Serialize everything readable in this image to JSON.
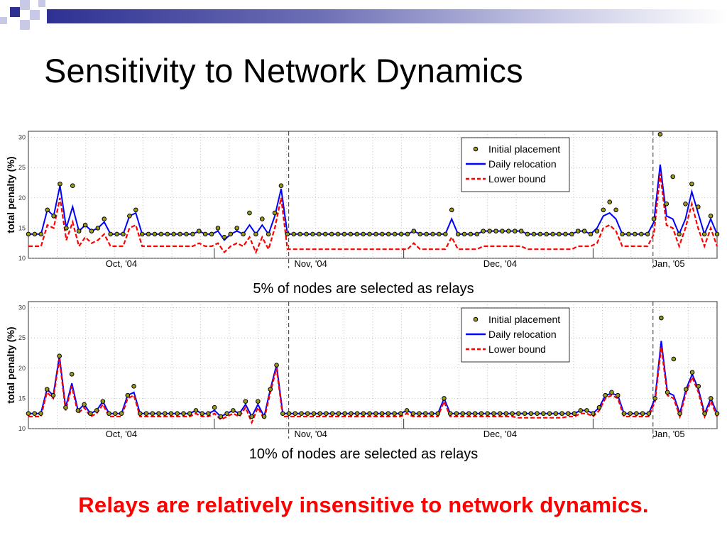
{
  "slide": {
    "title": "Sensitivity to Network Dynamics",
    "conclusion": "Relays are relatively insensitive to network dynamics.",
    "accent_color": "#2e3192",
    "conclusion_color": "#ff0000"
  },
  "chart_data": [
    {
      "type": "line",
      "caption": "5% of nodes are selected as relays",
      "ylabel": "total penalty (%)",
      "ylim": [
        10,
        31
      ],
      "yticks": [
        10,
        15,
        20,
        25,
        30
      ],
      "month_labels": [
        "Oct, '04",
        "Nov, '04",
        "Dec, '04",
        "Jan, '05"
      ],
      "grid": true,
      "legend_position": "top-right",
      "legend": [
        "Initial placement",
        "Daily relocation",
        "Lower bound"
      ],
      "series": [
        {
          "name": "Initial placement",
          "style": "markers",
          "color": "#9a9a1a",
          "values": [
            14,
            14,
            14,
            18,
            17,
            22.3,
            15,
            22,
            14.5,
            15.5,
            14.5,
            15,
            16.5,
            14,
            14,
            14,
            17,
            18,
            14,
            14,
            14,
            14,
            14,
            14,
            14,
            14,
            14,
            14.5,
            14,
            14,
            15,
            13.5,
            14,
            15,
            14,
            17.5,
            14,
            16.5,
            14,
            17.5,
            22,
            14,
            14,
            14,
            14,
            14,
            14,
            14,
            14,
            14,
            14,
            14,
            14,
            14,
            14,
            14,
            14,
            14,
            14,
            14,
            14,
            14.5,
            14,
            14,
            14,
            14,
            14,
            18,
            14,
            14,
            14,
            14,
            14.5,
            14.5,
            14.5,
            14.5,
            14.5,
            14.5,
            14.5,
            14,
            14,
            14,
            14,
            14,
            14,
            14,
            14,
            14.5,
            14.5,
            14,
            14.5,
            18,
            19.3,
            18,
            14,
            14,
            14,
            14,
            14,
            16.5,
            30.5,
            19,
            23.5,
            14,
            19,
            22.3,
            18.5,
            14,
            17,
            14
          ]
        },
        {
          "name": "Daily relocation",
          "style": "solid",
          "color": "#0000ff",
          "values": [
            14,
            14,
            14,
            18,
            17,
            22,
            15,
            18.5,
            14.5,
            15.5,
            14.5,
            15,
            16,
            14,
            14,
            14,
            17,
            17.5,
            14,
            14,
            14,
            14,
            14,
            14,
            14,
            14,
            14,
            14.5,
            14,
            14,
            14.5,
            13,
            14,
            14.5,
            14,
            15.5,
            14,
            15.5,
            14,
            17,
            21.5,
            14,
            14,
            14,
            14,
            14,
            14,
            14,
            14,
            14,
            14,
            14,
            14,
            14,
            14,
            14,
            14,
            14,
            14,
            14,
            14,
            14.5,
            14,
            14,
            14,
            14,
            14,
            16.5,
            14,
            14,
            14,
            14,
            14.5,
            14.5,
            14.5,
            14.5,
            14.5,
            14.5,
            14.5,
            14,
            14,
            14,
            14,
            14,
            14,
            14,
            14,
            14.5,
            14.5,
            14,
            15,
            17,
            17.5,
            16.5,
            14,
            14,
            14,
            14,
            14,
            16,
            25.5,
            17,
            16.5,
            14,
            16.5,
            21,
            17.5,
            14,
            16.5,
            14
          ]
        },
        {
          "name": "Lower bound",
          "style": "dashed",
          "color": "#ff0000",
          "values": [
            12,
            12,
            12,
            15.5,
            15,
            20,
            13,
            16,
            12,
            13.5,
            12.5,
            13,
            14,
            12,
            12,
            12,
            15,
            15.5,
            12,
            12,
            12,
            12,
            12,
            12,
            12,
            12,
            12,
            12.5,
            12,
            12,
            12.5,
            11,
            12,
            12.5,
            12,
            13.5,
            11,
            13.5,
            11.5,
            15,
            20,
            11.5,
            11.5,
            11.5,
            11.5,
            11.5,
            11.5,
            11.5,
            11.5,
            11.5,
            11.5,
            11.5,
            11.5,
            11.5,
            11.5,
            11.5,
            11.5,
            11.5,
            11.5,
            11.5,
            11.5,
            12.5,
            11.5,
            11.5,
            11.5,
            11.5,
            11.5,
            13.5,
            11.5,
            11.5,
            11.5,
            11.5,
            12,
            12,
            12,
            12,
            12,
            12,
            12,
            11.5,
            11.5,
            11.5,
            11.5,
            11.5,
            11.5,
            11.5,
            11.5,
            12,
            12,
            12,
            12.5,
            15,
            15.5,
            14.5,
            12,
            12,
            12,
            12,
            12,
            14,
            24,
            15.5,
            15,
            12,
            15,
            19,
            15,
            12,
            15,
            12
          ]
        }
      ]
    },
    {
      "type": "line",
      "caption": "10% of nodes are selected as relays",
      "ylabel": "total penalty (%)",
      "ylim": [
        10,
        31
      ],
      "yticks": [
        10,
        15,
        20,
        25,
        30
      ],
      "month_labels": [
        "Oct, '04",
        "Nov, '04",
        "Dec, '04",
        "Jan, '05"
      ],
      "grid": true,
      "legend_position": "top-right",
      "legend": [
        "Initial placement",
        "Daily relocation",
        "Lower bound"
      ],
      "series": [
        {
          "name": "Initial placement",
          "style": "markers",
          "color": "#9a9a1a",
          "values": [
            12.5,
            12.5,
            12.5,
            16.5,
            15.5,
            22,
            13.5,
            19,
            13,
            14,
            12.5,
            13,
            14.5,
            12.5,
            12.5,
            12.5,
            15.5,
            17,
            12.5,
            12.5,
            12.5,
            12.5,
            12.5,
            12.5,
            12.5,
            12.5,
            12.5,
            13,
            12.5,
            12.5,
            13.5,
            12,
            12.5,
            13,
            12.5,
            14.5,
            12,
            14.5,
            12,
            16.5,
            20.5,
            12.5,
            12.5,
            12.5,
            12.5,
            12.5,
            12.5,
            12.5,
            12.5,
            12.5,
            12.5,
            12.5,
            12.5,
            12.5,
            12.5,
            12.5,
            12.5,
            12.5,
            12.5,
            12.5,
            12.5,
            13,
            12.5,
            12.5,
            12.5,
            12.5,
            12.5,
            15,
            12.5,
            12.5,
            12.5,
            12.5,
            12.5,
            12.5,
            12.5,
            12.5,
            12.5,
            12.5,
            12.5,
            12.5,
            12.5,
            12.5,
            12.5,
            12.5,
            12.5,
            12.5,
            12.5,
            12.5,
            12.5,
            13,
            13,
            12.5,
            13.5,
            15.5,
            16,
            15.5,
            12.5,
            12.5,
            12.5,
            12.5,
            12.5,
            15,
            28.3,
            16,
            21.5,
            12.5,
            16.5,
            19.3,
            17,
            12.5,
            15,
            12.5
          ]
        },
        {
          "name": "Daily relocation",
          "style": "solid",
          "color": "#0000ff",
          "values": [
            12.5,
            12.5,
            12.5,
            16.5,
            15.5,
            22,
            13.5,
            17.5,
            13,
            14,
            12.5,
            13,
            14.5,
            12.5,
            12.5,
            12.5,
            15.5,
            16,
            12.5,
            12.5,
            12.5,
            12.5,
            12.5,
            12.5,
            12.5,
            12.5,
            12.5,
            13,
            12.5,
            12.5,
            13,
            12,
            12.5,
            13,
            12.5,
            14,
            12,
            14,
            12,
            16.5,
            20.5,
            12.5,
            12.5,
            12.5,
            12.5,
            12.5,
            12.5,
            12.5,
            12.5,
            12.5,
            12.5,
            12.5,
            12.5,
            12.5,
            12.5,
            12.5,
            12.5,
            12.5,
            12.5,
            12.5,
            12.5,
            13,
            12.5,
            12.5,
            12.5,
            12.5,
            12.5,
            15,
            12.5,
            12.5,
            12.5,
            12.5,
            12.5,
            12.5,
            12.5,
            12.5,
            12.5,
            12.5,
            12.5,
            12.5,
            12.5,
            12.5,
            12.5,
            12.5,
            12.5,
            12.5,
            12.5,
            12.5,
            12.5,
            13,
            13,
            12.5,
            13.5,
            15.5,
            15.8,
            15.5,
            12.5,
            12.5,
            12.5,
            12.5,
            12.5,
            15,
            24.5,
            16,
            15.5,
            12.5,
            16.5,
            19,
            16.5,
            12.5,
            15,
            12.5
          ]
        },
        {
          "name": "Lower bound",
          "style": "dashed",
          "color": "#ff0000",
          "values": [
            12,
            12,
            12,
            16,
            15,
            21.5,
            13,
            17,
            12.5,
            13.5,
            12,
            12.5,
            14,
            12,
            12,
            12,
            15,
            15.5,
            12,
            12,
            12,
            12,
            12,
            12,
            12,
            12,
            12,
            12.5,
            12,
            12,
            12.5,
            11.5,
            12,
            12.5,
            12,
            13.5,
            11,
            13.5,
            11.5,
            16,
            20,
            12,
            12,
            12,
            12,
            12,
            12,
            12,
            12,
            12,
            12,
            12,
            12,
            12,
            12,
            12,
            12,
            12,
            12,
            12,
            12,
            12.5,
            12,
            12,
            12,
            12,
            12,
            14.5,
            12,
            12,
            12,
            12,
            12,
            12,
            12,
            12,
            12,
            12,
            12,
            11.8,
            11.8,
            11.8,
            11.8,
            11.8,
            11.8,
            11.8,
            11.8,
            12,
            12,
            12.5,
            12.5,
            12,
            13,
            15,
            15.5,
            15,
            12,
            12,
            12,
            12,
            12,
            14.5,
            23.5,
            15.5,
            15,
            12,
            16,
            18.5,
            16,
            12,
            14.5,
            12
          ]
        }
      ]
    }
  ]
}
